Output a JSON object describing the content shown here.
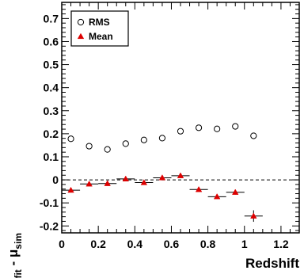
{
  "chart_data": {
    "type": "scatter",
    "xlabel": "Redshift",
    "ylabel": {
      "parts": [
        {
          "text": "μ",
          "role": "base"
        },
        {
          "text": "fit",
          "role": "sub"
        },
        {
          "text": " - μ",
          "role": "base"
        },
        {
          "text": "sim",
          "role": "sub"
        }
      ]
    },
    "xlim": [
      0,
      1.3
    ],
    "ylim": [
      -0.23,
      0.77
    ],
    "xticks": [
      0,
      0.2,
      0.4,
      0.6,
      0.8,
      1.0,
      1.2
    ],
    "xtick_labels": [
      "0",
      "0.2",
      "0.4",
      "0.6",
      "0.8",
      "1",
      "1.2"
    ],
    "yticks": [
      -0.2,
      -0.1,
      0,
      0.1,
      0.2,
      0.3,
      0.4,
      0.5,
      0.6,
      0.7
    ],
    "ytick_labels": [
      "-0.2",
      "-0.1",
      "0",
      "0.1",
      "0.2",
      "0.3",
      "0.4",
      "0.5",
      "0.6",
      "0.7"
    ],
    "reference_line": {
      "y": 0,
      "style": "dashed"
    },
    "legend": {
      "placement": "top-left",
      "bordered": true
    },
    "series": [
      {
        "name": "RMS",
        "marker": "open-circle",
        "color": "#000000",
        "x": [
          0.05,
          0.15,
          0.25,
          0.35,
          0.45,
          0.55,
          0.65,
          0.75,
          0.85,
          0.95,
          1.05
        ],
        "y": [
          0.178,
          0.146,
          0.132,
          0.157,
          0.173,
          0.181,
          0.211,
          0.226,
          0.221,
          0.232,
          0.191
        ]
      },
      {
        "name": "Mean",
        "marker": "filled-triangle",
        "color": "#dd0000",
        "x": [
          0.05,
          0.15,
          0.25,
          0.35,
          0.45,
          0.55,
          0.65,
          0.75,
          0.85,
          0.95,
          1.05
        ],
        "y": [
          -0.045,
          -0.018,
          -0.016,
          0.004,
          -0.012,
          0.009,
          0.018,
          -0.042,
          -0.073,
          -0.054,
          -0.157
        ],
        "x_err": [
          0.05,
          0.05,
          0.05,
          0.05,
          0.05,
          0.05,
          0.05,
          0.05,
          0.05,
          0.05,
          0.05
        ],
        "y_err": [
          0.006,
          0.005,
          0.005,
          0.005,
          0.005,
          0.006,
          0.006,
          0.007,
          0.008,
          0.01,
          0.025
        ]
      }
    ]
  }
}
